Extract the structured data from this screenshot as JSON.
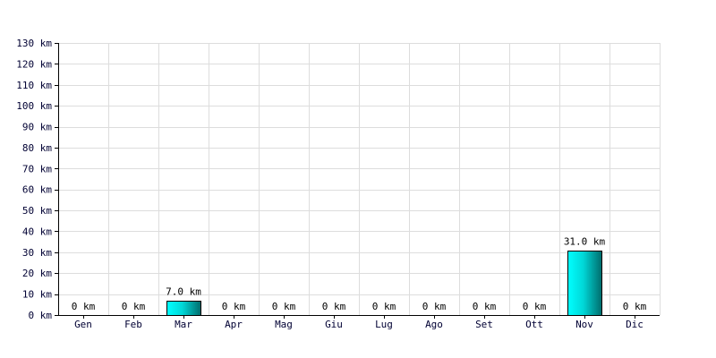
{
  "chart_data": {
    "type": "bar",
    "title": "",
    "xlabel": "",
    "ylabel": "",
    "categories": [
      "Gen",
      "Feb",
      "Mar",
      "Apr",
      "Mag",
      "Giu",
      "Lug",
      "Ago",
      "Set",
      "Ott",
      "Nov",
      "Dic"
    ],
    "series": [
      {
        "values": [
          0,
          0,
          7.0,
          0,
          0,
          0,
          0,
          0,
          0,
          0,
          31.0,
          0
        ],
        "data_labels": [
          "0 km",
          "0 km",
          "7.0 km",
          "0 km",
          "0 km",
          "0 km",
          "0 km",
          "0 km",
          "0 km",
          "0 km",
          "31.0 km",
          "0 km"
        ]
      }
    ],
    "ylim": [
      0,
      130
    ],
    "y_ticks": [
      0,
      10,
      20,
      30,
      40,
      50,
      60,
      70,
      80,
      90,
      100,
      110,
      120,
      130
    ],
    "y_tick_labels": [
      "0 km",
      "10 km",
      "20 km",
      "30 km",
      "40 km",
      "50 km",
      "60 km",
      "70 km",
      "80 km",
      "90 km",
      "100 km",
      "110 km",
      "120 km",
      "130 km"
    ],
    "grid": true,
    "colors": {
      "bar_light": "#00ffff",
      "bar_dark": "#006b6b",
      "bar_stroke": "#000000",
      "grid": "#dddddd",
      "axis": "#000000",
      "tick_text": "#000033"
    }
  }
}
